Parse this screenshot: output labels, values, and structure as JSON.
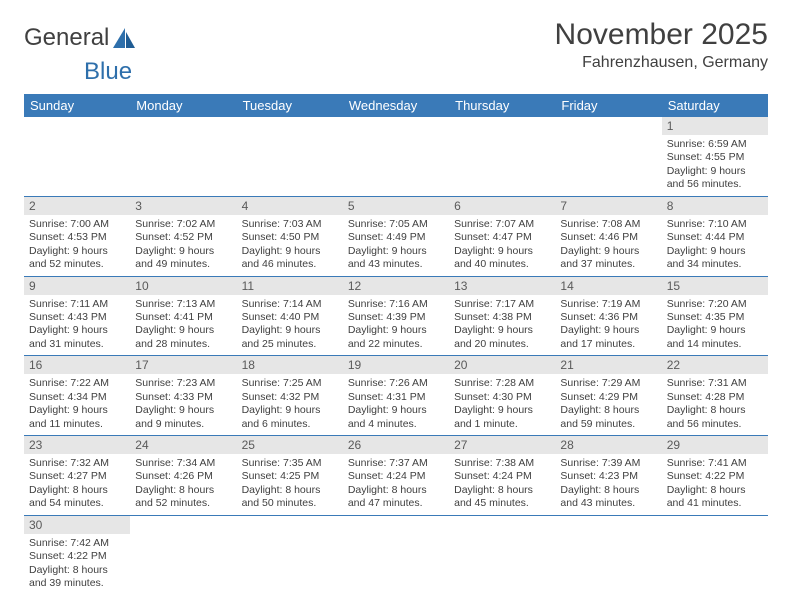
{
  "logo": {
    "text1": "General",
    "text2": "Blue"
  },
  "header": {
    "month": "November 2025",
    "location": "Fahrenzhausen, Germany"
  },
  "colors": {
    "header_bg": "#3a7ab8",
    "header_fg": "#ffffff",
    "daynum_bg": "#e6e6e6",
    "rule": "#3a7ab8",
    "logo_accent": "#2e6fab"
  },
  "weekdays": [
    "Sunday",
    "Monday",
    "Tuesday",
    "Wednesday",
    "Thursday",
    "Friday",
    "Saturday"
  ],
  "grid": [
    [
      null,
      null,
      null,
      null,
      null,
      null,
      {
        "n": "1",
        "sr": "6:59 AM",
        "ss": "4:55 PM",
        "dl": "9 hours and 56 minutes."
      }
    ],
    [
      {
        "n": "2",
        "sr": "7:00 AM",
        "ss": "4:53 PM",
        "dl": "9 hours and 52 minutes."
      },
      {
        "n": "3",
        "sr": "7:02 AM",
        "ss": "4:52 PM",
        "dl": "9 hours and 49 minutes."
      },
      {
        "n": "4",
        "sr": "7:03 AM",
        "ss": "4:50 PM",
        "dl": "9 hours and 46 minutes."
      },
      {
        "n": "5",
        "sr": "7:05 AM",
        "ss": "4:49 PM",
        "dl": "9 hours and 43 minutes."
      },
      {
        "n": "6",
        "sr": "7:07 AM",
        "ss": "4:47 PM",
        "dl": "9 hours and 40 minutes."
      },
      {
        "n": "7",
        "sr": "7:08 AM",
        "ss": "4:46 PM",
        "dl": "9 hours and 37 minutes."
      },
      {
        "n": "8",
        "sr": "7:10 AM",
        "ss": "4:44 PM",
        "dl": "9 hours and 34 minutes."
      }
    ],
    [
      {
        "n": "9",
        "sr": "7:11 AM",
        "ss": "4:43 PM",
        "dl": "9 hours and 31 minutes."
      },
      {
        "n": "10",
        "sr": "7:13 AM",
        "ss": "4:41 PM",
        "dl": "9 hours and 28 minutes."
      },
      {
        "n": "11",
        "sr": "7:14 AM",
        "ss": "4:40 PM",
        "dl": "9 hours and 25 minutes."
      },
      {
        "n": "12",
        "sr": "7:16 AM",
        "ss": "4:39 PM",
        "dl": "9 hours and 22 minutes."
      },
      {
        "n": "13",
        "sr": "7:17 AM",
        "ss": "4:38 PM",
        "dl": "9 hours and 20 minutes."
      },
      {
        "n": "14",
        "sr": "7:19 AM",
        "ss": "4:36 PM",
        "dl": "9 hours and 17 minutes."
      },
      {
        "n": "15",
        "sr": "7:20 AM",
        "ss": "4:35 PM",
        "dl": "9 hours and 14 minutes."
      }
    ],
    [
      {
        "n": "16",
        "sr": "7:22 AM",
        "ss": "4:34 PM",
        "dl": "9 hours and 11 minutes."
      },
      {
        "n": "17",
        "sr": "7:23 AM",
        "ss": "4:33 PM",
        "dl": "9 hours and 9 minutes."
      },
      {
        "n": "18",
        "sr": "7:25 AM",
        "ss": "4:32 PM",
        "dl": "9 hours and 6 minutes."
      },
      {
        "n": "19",
        "sr": "7:26 AM",
        "ss": "4:31 PM",
        "dl": "9 hours and 4 minutes."
      },
      {
        "n": "20",
        "sr": "7:28 AM",
        "ss": "4:30 PM",
        "dl": "9 hours and 1 minute."
      },
      {
        "n": "21",
        "sr": "7:29 AM",
        "ss": "4:29 PM",
        "dl": "8 hours and 59 minutes."
      },
      {
        "n": "22",
        "sr": "7:31 AM",
        "ss": "4:28 PM",
        "dl": "8 hours and 56 minutes."
      }
    ],
    [
      {
        "n": "23",
        "sr": "7:32 AM",
        "ss": "4:27 PM",
        "dl": "8 hours and 54 minutes."
      },
      {
        "n": "24",
        "sr": "7:34 AM",
        "ss": "4:26 PM",
        "dl": "8 hours and 52 minutes."
      },
      {
        "n": "25",
        "sr": "7:35 AM",
        "ss": "4:25 PM",
        "dl": "8 hours and 50 minutes."
      },
      {
        "n": "26",
        "sr": "7:37 AM",
        "ss": "4:24 PM",
        "dl": "8 hours and 47 minutes."
      },
      {
        "n": "27",
        "sr": "7:38 AM",
        "ss": "4:24 PM",
        "dl": "8 hours and 45 minutes."
      },
      {
        "n": "28",
        "sr": "7:39 AM",
        "ss": "4:23 PM",
        "dl": "8 hours and 43 minutes."
      },
      {
        "n": "29",
        "sr": "7:41 AM",
        "ss": "4:22 PM",
        "dl": "8 hours and 41 minutes."
      }
    ],
    [
      {
        "n": "30",
        "sr": "7:42 AM",
        "ss": "4:22 PM",
        "dl": "8 hours and 39 minutes."
      },
      null,
      null,
      null,
      null,
      null,
      null
    ]
  ],
  "labels": {
    "sunrise": "Sunrise:",
    "sunset": "Sunset:",
    "daylight": "Daylight:"
  }
}
